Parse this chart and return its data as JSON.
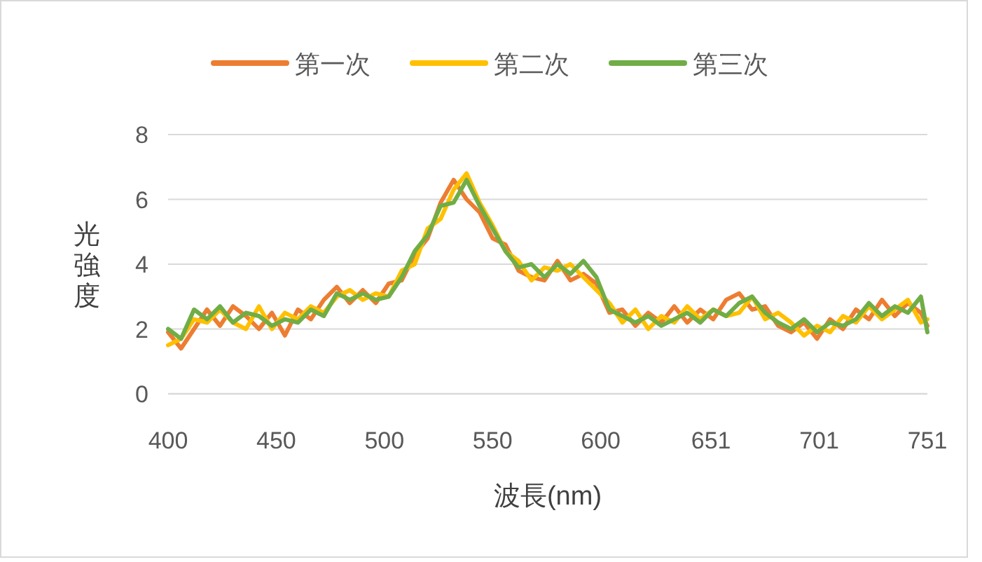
{
  "chart_data": {
    "type": "line",
    "xlabel": "波長(nm)",
    "ylabel": "光強度",
    "x": [
      400,
      406,
      412,
      418,
      424,
      430,
      436,
      442,
      448,
      454,
      460,
      466,
      472,
      478,
      484,
      490,
      496,
      502,
      508,
      514,
      520,
      526,
      532,
      538,
      544,
      550,
      556,
      562,
      568,
      574,
      580,
      586,
      592,
      598,
      604,
      610,
      616,
      622,
      628,
      634,
      640,
      646,
      652,
      658,
      664,
      670,
      676,
      682,
      688,
      694,
      700,
      706,
      712,
      718,
      724,
      730,
      736,
      742,
      748,
      751
    ],
    "xlim": [
      400,
      751
    ],
    "xticks": [
      400,
      450,
      500,
      550,
      600,
      651,
      701,
      751
    ],
    "ylim": [
      0,
      8
    ],
    "yticks": [
      0,
      2,
      4,
      6,
      8
    ],
    "grid": "y",
    "legend": "top",
    "series": [
      {
        "name": "第一次",
        "color": "#ed7d31",
        "values": [
          1.9,
          1.4,
          2.0,
          2.6,
          2.1,
          2.7,
          2.4,
          2.0,
          2.5,
          1.8,
          2.6,
          2.3,
          2.9,
          3.3,
          2.8,
          3.2,
          2.8,
          3.4,
          3.5,
          4.3,
          4.8,
          5.9,
          6.6,
          6.0,
          5.6,
          4.8,
          4.6,
          3.8,
          3.6,
          3.5,
          4.1,
          3.5,
          3.7,
          3.4,
          2.5,
          2.6,
          2.1,
          2.5,
          2.2,
          2.7,
          2.2,
          2.6,
          2.3,
          2.9,
          3.1,
          2.6,
          2.7,
          2.1,
          1.9,
          2.2,
          1.7,
          2.3,
          2.0,
          2.6,
          2.3,
          2.9,
          2.4,
          2.8,
          2.5,
          2.1
        ]
      },
      {
        "name": "第二次",
        "color": "#ffc000",
        "values": [
          1.5,
          1.7,
          2.3,
          2.2,
          2.6,
          2.2,
          2.0,
          2.7,
          2.0,
          2.5,
          2.3,
          2.7,
          2.5,
          3.0,
          3.2,
          2.9,
          3.1,
          3.0,
          3.8,
          4.0,
          5.1,
          5.4,
          6.3,
          6.8,
          5.9,
          5.2,
          4.4,
          4.1,
          3.5,
          3.9,
          3.8,
          4.0,
          3.6,
          3.2,
          2.8,
          2.2,
          2.6,
          2.0,
          2.4,
          2.2,
          2.7,
          2.3,
          2.6,
          2.4,
          2.5,
          3.0,
          2.3,
          2.5,
          2.2,
          1.8,
          2.1,
          1.9,
          2.4,
          2.2,
          2.7,
          2.3,
          2.6,
          2.9,
          2.2,
          2.3
        ]
      },
      {
        "name": "第三次",
        "color": "#70ad47",
        "values": [
          2.0,
          1.7,
          2.6,
          2.3,
          2.7,
          2.2,
          2.5,
          2.4,
          2.1,
          2.3,
          2.2,
          2.6,
          2.4,
          3.1,
          2.9,
          3.1,
          2.9,
          3.0,
          3.6,
          4.4,
          4.9,
          5.8,
          5.9,
          6.6,
          5.8,
          5.1,
          4.4,
          3.9,
          4.0,
          3.6,
          4.0,
          3.7,
          4.1,
          3.6,
          2.6,
          2.4,
          2.2,
          2.4,
          2.1,
          2.3,
          2.5,
          2.2,
          2.6,
          2.4,
          2.8,
          3.0,
          2.5,
          2.2,
          2.0,
          2.3,
          1.9,
          2.2,
          2.1,
          2.3,
          2.8,
          2.4,
          2.7,
          2.5,
          3.0,
          1.9
        ]
      }
    ]
  }
}
